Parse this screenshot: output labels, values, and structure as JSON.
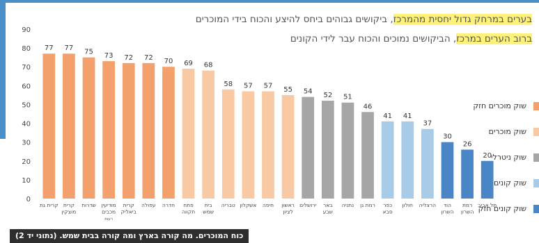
{
  "headline": {
    "line1_highlight": "בערים במרחק גדול יחסית מהמרכז",
    "line1_rest": ", ביקושים גבוהים ביחס להיצע והכוח בידי המוכרים",
    "line2_highlight": "ברוב הערים במרכז",
    "line2_rest": ", הביקושים נמוכים והכוח עבר לידי הקונים"
  },
  "caption": "כוח המוכרים. מה קורה בארץ ומה קורה בבית שמש. (נתוני יד 2)",
  "legend": [
    {
      "label": "שוק מוכרים חזק",
      "color": "#f4a06d"
    },
    {
      "label": "שוק מוכרים",
      "color": "#f8c9a2"
    },
    {
      "label": "שוק ניטרלי",
      "color": "#a6a6a6"
    },
    {
      "label": "שוק קונים",
      "color": "#a8cbe8"
    },
    {
      "label": "שוק קונים חזק",
      "color": "#4a86c5"
    }
  ],
  "chart_data": {
    "type": "bar",
    "ylim": [
      0,
      90
    ],
    "yticks": [
      0,
      10,
      20,
      30,
      40,
      50,
      60,
      70,
      80,
      90
    ],
    "grid": false,
    "categories": [
      [
        "קרית גת"
      ],
      [
        "קרית",
        "מוצקין"
      ],
      [
        "שדרות"
      ],
      [
        "מודיעין",
        "מכבים",
        "רעות"
      ],
      [
        "קרית",
        "ביאליק"
      ],
      [
        "עפולה"
      ],
      [
        "חדרה"
      ],
      [
        "פתח",
        "תקווה"
      ],
      [
        "בית",
        "שמש"
      ],
      [
        "טבריה"
      ],
      [
        "אשקלון"
      ],
      [
        "חיפה"
      ],
      [
        "ראשון",
        "לציון"
      ],
      [
        "ירושלים"
      ],
      [
        "באר",
        "שבע"
      ],
      [
        "נתניה"
      ],
      [
        "רמת גן"
      ],
      [
        "כפר",
        "סבא"
      ],
      [
        "חולון"
      ],
      [
        "הרצליה"
      ],
      [
        "הוד",
        "השרון"
      ],
      [
        "רמת",
        "השרון"
      ],
      [
        "תל אביב"
      ]
    ],
    "values": [
      77,
      77,
      75,
      73,
      72,
      72,
      70,
      69,
      68,
      58,
      57,
      57,
      55,
      54,
      52,
      51,
      46,
      41,
      41,
      37,
      30,
      26,
      20
    ],
    "bar_colors": [
      "#f4a06d",
      "#f4a06d",
      "#f4a06d",
      "#f4a06d",
      "#f4a06d",
      "#f4a06d",
      "#f4a06d",
      "#f8c9a2",
      "#f8c9a2",
      "#f8c9a2",
      "#f8c9a2",
      "#f8c9a2",
      "#f8c9a2",
      "#a6a6a6",
      "#a6a6a6",
      "#a6a6a6",
      "#a6a6a6",
      "#a8cbe8",
      "#a8cbe8",
      "#a8cbe8",
      "#4a86c5",
      "#4a86c5",
      "#4a86c5"
    ]
  }
}
